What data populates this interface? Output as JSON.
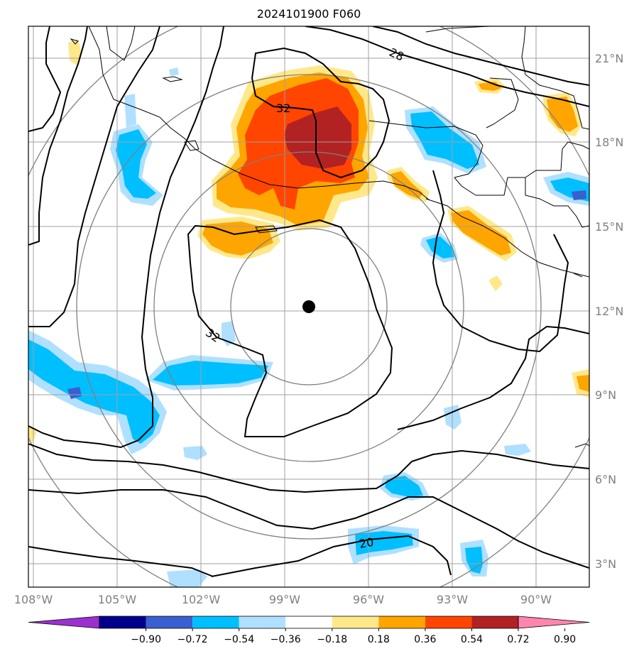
{
  "title": "2024101900 F060",
  "map": {
    "lat_labels": [
      "21°N",
      "18°N",
      "15°N",
      "12°N",
      "9°N",
      "6°N",
      "3°N"
    ],
    "lon_labels": [
      "108°W",
      "105°W",
      "102°W",
      "99°W",
      "96°W",
      "93°W",
      "90°W"
    ],
    "contour_labels": [
      "28",
      "32",
      "32",
      "20"
    ],
    "center_marker": "storm-center",
    "gridline_color": "#a0a0a0",
    "ring_color": "#808080"
  },
  "colorbar": {
    "labels": [
      "−0.90",
      "−0.72",
      "−0.54",
      "−0.36",
      "−0.18",
      "0.18",
      "0.36",
      "0.54",
      "0.72",
      "0.90"
    ],
    "colors": [
      "#9b30d0",
      "#00008b",
      "#3a5fd0",
      "#00bfff",
      "#b0e0ff",
      "#ffffff",
      "#ffe88a",
      "#ffa500",
      "#ff4500",
      "#b22222",
      "#ff85b0"
    ]
  }
}
